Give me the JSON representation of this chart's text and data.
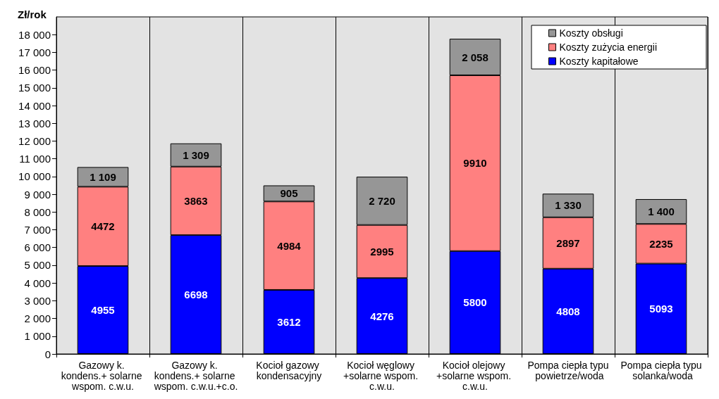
{
  "chart_data": {
    "type": "bar",
    "stacked": true,
    "ylabel": "Zł/rok",
    "categories": [
      "Gazowy k. kondens.+ solarne wspom. c.w.u.",
      "Gazowy k. kondens.+ solarne wspom. c.w.u.+c.o.",
      "Kocioł gazowy kondensacyjny",
      "Kocioł węglowy +solarne wspom. c.w.u.",
      "Kocioł olejowy +solarne wspom. c.w.u.",
      "Pompa ciepła typu powietrze/woda",
      "Pompa ciepła typu solanka/woda"
    ],
    "series": [
      {
        "name": "Koszty kapitałowe",
        "color": "#0000ff",
        "values": [
          4955,
          6698,
          3612,
          4276,
          5800,
          4808,
          5093
        ],
        "value_labels": [
          "4955",
          "6698",
          "3612",
          "4276",
          "5800",
          "4808",
          "5093"
        ]
      },
      {
        "name": "Koszty zużycia energii",
        "color": "#ff8080",
        "values": [
          4472,
          3863,
          4984,
          2995,
          9910,
          2897,
          2235
        ],
        "value_labels": [
          "4472",
          "3863",
          "4984",
          "2995",
          "9910",
          "2897",
          "2235"
        ]
      },
      {
        "name": "Koszty obsługi",
        "color": "#969696",
        "values": [
          1109,
          1309,
          905,
          2720,
          2058,
          1330,
          1400
        ],
        "value_labels": [
          "1 109",
          "1 309",
          "905",
          "2 720",
          "2 058",
          "1 330",
          "1 400"
        ]
      }
    ],
    "ylim": [
      0,
      19000
    ],
    "yticks": [
      0,
      {
        "value": 1000,
        "label": "1 000"
      },
      {
        "value": 2000,
        "label": "2 000"
      },
      {
        "value": 3000,
        "label": "3 000"
      },
      {
        "value": 4000,
        "label": "4 000"
      },
      {
        "value": 5000,
        "label": "5 000"
      },
      {
        "value": 6000,
        "label": "6 000"
      },
      {
        "value": 7000,
        "label": "7 000"
      },
      {
        "value": 8000,
        "label": "8 000"
      },
      {
        "value": 9000,
        "label": "9 000"
      },
      {
        "value": 10000,
        "label": "10 000"
      },
      {
        "value": 11000,
        "label": "11 000"
      },
      {
        "value": 12000,
        "label": "12 000"
      },
      {
        "value": 13000,
        "label": "13 000"
      },
      {
        "value": 14000,
        "label": "14 000"
      },
      {
        "value": 15000,
        "label": "15 000"
      },
      {
        "value": 16000,
        "label": "16 000"
      },
      {
        "value": 17000,
        "label": "17 000"
      },
      {
        "value": 18000,
        "label": "18 000"
      }
    ],
    "grid": "x",
    "legend": "top right"
  }
}
